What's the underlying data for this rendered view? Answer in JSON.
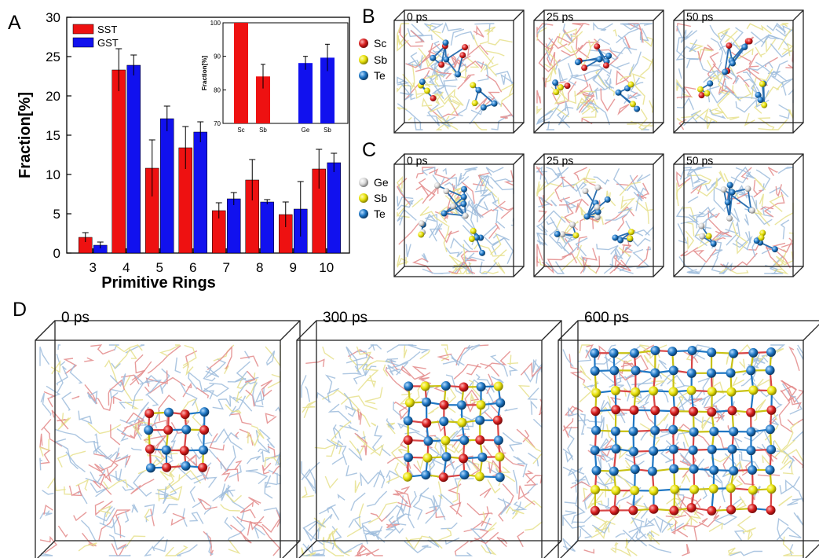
{
  "panels": {
    "A": "A",
    "B": "B",
    "C": "C",
    "D": "D"
  },
  "colors": {
    "SST": "#ee1111",
    "GST": "#1111ee",
    "Sc": "#d81f1f",
    "Sb": "#e8e20a",
    "Te": "#1f77c4",
    "Ge": "#d9d9d9",
    "bondBlue": "#9dbcdc",
    "bondYellow": "#e6e08c",
    "bondRed": "#e38a8a"
  },
  "chart_data": [
    {
      "type": "bar",
      "panel": "A",
      "title": "",
      "xlabel": "Primitive Rings",
      "ylabel": "Fraction[%]",
      "ylim": [
        0,
        30
      ],
      "yticks": [
        "0",
        "5",
        "10",
        "15",
        "20",
        "25",
        "30"
      ],
      "categories": [
        "3",
        "4",
        "5",
        "6",
        "7",
        "8",
        "9",
        "10"
      ],
      "series": [
        {
          "name": "SST",
          "color": "#ee1111",
          "values": [
            2.0,
            23.3,
            10.8,
            13.4,
            5.4,
            9.3,
            4.9,
            10.7
          ],
          "errors": [
            0.6,
            2.7,
            3.6,
            2.7,
            1.0,
            2.6,
            1.6,
            2.5
          ]
        },
        {
          "name": "GST",
          "color": "#1111ee",
          "values": [
            1.0,
            23.9,
            17.1,
            15.4,
            6.9,
            6.5,
            5.6,
            11.5
          ],
          "errors": [
            0.4,
            1.3,
            1.6,
            1.3,
            0.8,
            0.3,
            3.5,
            1.2
          ]
        }
      ],
      "legend": [
        "SST",
        "GST"
      ],
      "legend_position": "top-left"
    },
    {
      "type": "bar",
      "panel": "A-inset",
      "title": "",
      "xlabel": "",
      "ylabel": "Fraction[%]",
      "ylim": [
        70,
        100
      ],
      "yticks": [
        "70",
        "80",
        "90",
        "100"
      ],
      "categories": [
        "Sc",
        "Sb",
        "Ge",
        "Sb"
      ],
      "values": [
        100,
        84.0,
        88.0,
        89.6
      ],
      "errors": [
        0,
        3.6,
        2.0,
        4.0
      ],
      "colors": [
        "#ee1111",
        "#ee1111",
        "#1111ee",
        "#1111ee"
      ]
    }
  ],
  "panelB": {
    "legend": [
      "Sc",
      "Sb",
      "Te"
    ],
    "frames": [
      "0 ps",
      "25 ps",
      "50 ps"
    ]
  },
  "panelC": {
    "legend": [
      "Ge",
      "Sb",
      "Te"
    ],
    "frames": [
      "0 ps",
      "25 ps",
      "50 ps"
    ]
  },
  "panelD": {
    "frames": [
      "0 ps",
      "300 ps",
      "600 ps"
    ]
  }
}
